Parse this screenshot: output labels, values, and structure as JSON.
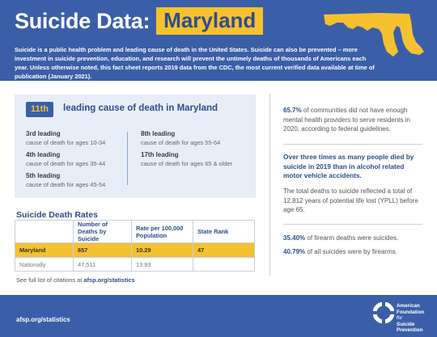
{
  "header": {
    "title": "Suicide Data:",
    "state": "Maryland",
    "intro": "Suicide is a public health problem and leading cause of death in the United States. Suicide can also be prevented – more investment in suicide prevention, education, and research will prevent the untimely deaths of thousands of Americans each year. Unless otherwise noted, this fact sheet reports 2019 data from the CDC, the most current verified data available at time of publication (January 2021)."
  },
  "leading": {
    "rank": "11th",
    "title": "leading cause of death in Maryland",
    "items": [
      {
        "label": "3rd leading",
        "desc": "cause of death for ages 10-34"
      },
      {
        "label": "4th leading",
        "desc": "cause of death for ages 35-44"
      },
      {
        "label": "5th leading",
        "desc": "cause of death for ages 45-54"
      },
      {
        "label": "8th leading",
        "desc": "cause of death for ages 55-64"
      },
      {
        "label": "17th leading",
        "desc": "cause of death for ages 65 & older"
      }
    ]
  },
  "rates": {
    "title": "Suicide Death Rates",
    "headers": [
      "",
      "Number of Deaths by Suicide",
      "Rate per 100,000 Population",
      "State Rank"
    ],
    "rows": [
      {
        "name": "Maryland",
        "deaths": "657",
        "rate": "10.29",
        "rank": "47"
      },
      {
        "name": "Nationally",
        "deaths": "47,511",
        "rate": "13.93",
        "rank": ""
      }
    ]
  },
  "citation": {
    "prefix": "See full list of citations at ",
    "link": "afsp.org/statistics"
  },
  "right": {
    "stat1_pct": "65.7%",
    "stat1_text": " of communities did not have enough mental health providers to serve residents in 2020, according to federal guidelines.",
    "stat2": "Over three times as many people died by suicide in 2019 than in alcohol related motor vehicle accidents.",
    "stat3": "The total deaths to suicide reflected a total of 12,812 years of potential life lost (YPLL) before age 65.",
    "stat4_pct": "35.40%",
    "stat4_text": " of firearm deaths were suicides.",
    "stat5_pct": "40.79%",
    "stat5_text": " of all suicides were by firearms."
  },
  "footer": {
    "link": "afsp.org/statistics",
    "org_line1": "American",
    "org_line2": "Foundation",
    "org_line3": "for",
    "org_line4": "Suicide",
    "org_line5": "Prevention"
  },
  "colors": {
    "brand_blue": "#3a5fa8",
    "accent_yellow": "#f6c12e",
    "light_blue_panel": "#e7eef7"
  },
  "icons": {
    "state_map": "maryland-map-icon",
    "logo": "afsp-lifebuoy-logo-icon"
  }
}
